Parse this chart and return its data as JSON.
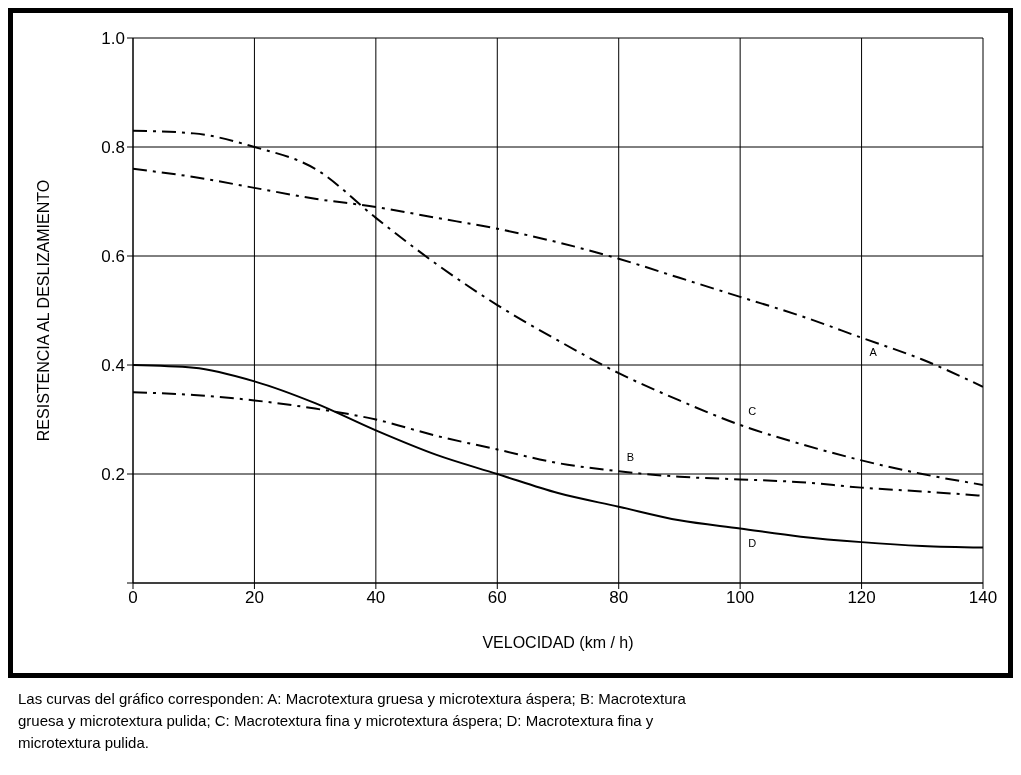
{
  "chart_data": {
    "type": "line",
    "xlabel": "VELOCIDAD  (km / h)",
    "ylabel": "RESISTENCIA  AL  DESLIZAMIENTO",
    "x": [
      0,
      10,
      20,
      30,
      40,
      50,
      60,
      70,
      80,
      90,
      100,
      110,
      120,
      130,
      140
    ],
    "series": [
      {
        "name": "A",
        "color": "#000000",
        "line_style": "dashed",
        "values": [
          0.76,
          0.745,
          0.725,
          0.705,
          0.69,
          0.67,
          0.65,
          0.625,
          0.595,
          0.56,
          0.525,
          0.49,
          0.45,
          0.41,
          0.36
        ]
      },
      {
        "name": "B",
        "color": "#000000",
        "line_style": "dashed",
        "values": [
          0.35,
          0.345,
          0.335,
          0.32,
          0.3,
          0.27,
          0.245,
          0.22,
          0.205,
          0.195,
          0.19,
          0.185,
          0.175,
          0.168,
          0.16
        ]
      },
      {
        "name": "C",
        "color": "#000000",
        "line_style": "dashed",
        "values": [
          0.83,
          0.825,
          0.8,
          0.76,
          0.67,
          0.585,
          0.51,
          0.445,
          0.385,
          0.335,
          0.29,
          0.255,
          0.225,
          0.2,
          0.18
        ]
      },
      {
        "name": "D",
        "color": "#000000",
        "line_style": "solid",
        "values": [
          0.4,
          0.395,
          0.37,
          0.33,
          0.28,
          0.235,
          0.2,
          0.165,
          0.14,
          0.115,
          0.1,
          0.085,
          0.075,
          0.068,
          0.065
        ]
      }
    ],
    "xlim": [
      0,
      140
    ],
    "xticks": [
      0,
      20,
      40,
      60,
      80,
      100,
      120,
      140
    ],
    "ylim": [
      0,
      1
    ],
    "yticks": [
      {
        "value": 0,
        "label": null
      },
      0.2,
      0.4,
      0.6,
      0.8,
      {
        "value": 1,
        "label": "1.0"
      }
    ],
    "grid": true,
    "legend": false,
    "marker": "none",
    "annotations": [
      "Las curvas del gráfico corresponden: A: Macrotextura gruesa y microtextura áspera; B: Macrotextura gruesa y microtextura pulida; C: Macrotextura fina y microtextura áspera; D: Macrotextura fina y microtextura pulida."
    ]
  }
}
